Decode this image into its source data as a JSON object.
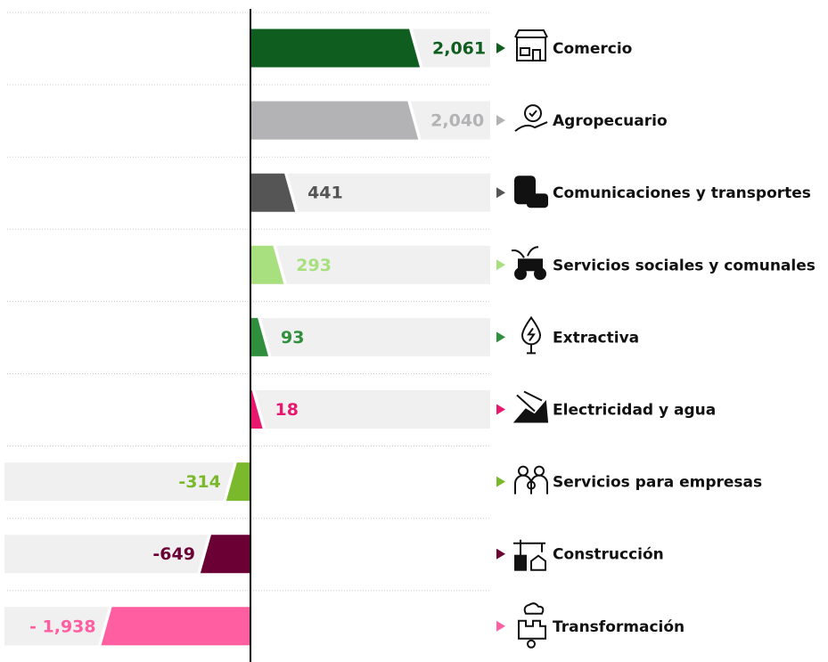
{
  "chart_data": {
    "type": "bar",
    "orientation": "horizontal",
    "categories": [
      "Comercio",
      "Agropecuario",
      "Comunicaciones y transportes",
      "Servicios sociales y comunales",
      "Extractiva",
      "Electricidad y agua",
      "Servicios para empresas",
      "Construcción",
      "Transformación"
    ],
    "values": [
      2061,
      2040,
      441,
      293,
      93,
      18,
      -314,
      -649,
      -1938
    ],
    "value_labels": [
      "2,061",
      "2,040",
      "441",
      "293",
      "93",
      "18",
      "-314",
      "-649",
      "- 1,938"
    ],
    "colors": [
      "#0f5e1f",
      "#b3b3b5",
      "#555555",
      "#a9e07f",
      "#2f8f3c",
      "#e8186f",
      "#7ab82c",
      "#6b0034",
      "#ff5ea1"
    ],
    "label_colors": [
      "#0f5e1f",
      "#b3b3b5",
      "#555555",
      "#a9e07f",
      "#2f8f3c",
      "#e8186f",
      "#7ab82c",
      "#6b0034",
      "#ff5ea1"
    ]
  }
}
